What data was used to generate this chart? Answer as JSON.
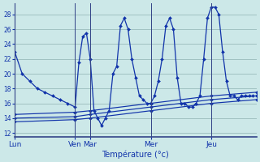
{
  "background_color": "#cce8e8",
  "grid_color": "#99bbbb",
  "line_color": "#1133aa",
  "xlabel": "Température (°c)",
  "ylim": [
    11.5,
    29.5
  ],
  "yticks": [
    12,
    14,
    16,
    18,
    20,
    22,
    24,
    26,
    28
  ],
  "xlim": [
    0,
    32
  ],
  "day_tick_positions": [
    0,
    8,
    10,
    18,
    26
  ],
  "day_labels": [
    "Lun",
    "Ven",
    "Mar",
    "Mer",
    "Jeu"
  ],
  "vlines": [
    8,
    10,
    18,
    26
  ],
  "series_main": {
    "x": [
      0,
      1,
      2,
      3,
      4,
      5,
      6,
      7,
      8,
      8.5,
      9,
      9.5,
      10,
      10.5,
      11,
      11.5,
      12,
      12.5,
      13,
      13.5,
      14,
      14.5,
      15,
      15.5,
      16,
      16.5,
      17,
      17.5,
      18,
      18.5,
      19,
      19.5,
      20,
      20.5,
      21,
      21.5,
      22,
      22.5,
      23,
      23.5,
      24,
      24.5,
      25,
      25.5,
      26,
      26.5,
      27,
      27.5,
      28,
      28.5,
      29,
      29.5,
      30,
      30.5,
      31,
      31.5,
      32
    ],
    "y": [
      23,
      20,
      19,
      18,
      17.5,
      17,
      16.5,
      16,
      15.5,
      21.5,
      25,
      25.5,
      22,
      15,
      14,
      13,
      14,
      15,
      20,
      21,
      26.5,
      27.5,
      26,
      22,
      19.5,
      17,
      16.5,
      16,
      16,
      17,
      19,
      22,
      26.5,
      27.5,
      26,
      19.5,
      16,
      16,
      15.5,
      15.5,
      16,
      17,
      22,
      27.5,
      29,
      29,
      28,
      23,
      19,
      17,
      17,
      16.5,
      17,
      17,
      17,
      17,
      17
    ]
  },
  "series_min1": {
    "x": [
      0,
      8,
      10,
      18,
      26,
      32
    ],
    "y": [
      14.0,
      14.2,
      14.5,
      15.5,
      16.5,
      17.0
    ]
  },
  "series_min2": {
    "x": [
      0,
      8,
      10,
      18,
      26,
      32
    ],
    "y": [
      13.5,
      13.8,
      14.0,
      15.0,
      16.0,
      16.5
    ]
  },
  "series_min3": {
    "x": [
      0,
      8,
      10,
      18,
      26,
      32
    ],
    "y": [
      14.5,
      14.8,
      15.0,
      16.0,
      17.0,
      17.5
    ]
  }
}
